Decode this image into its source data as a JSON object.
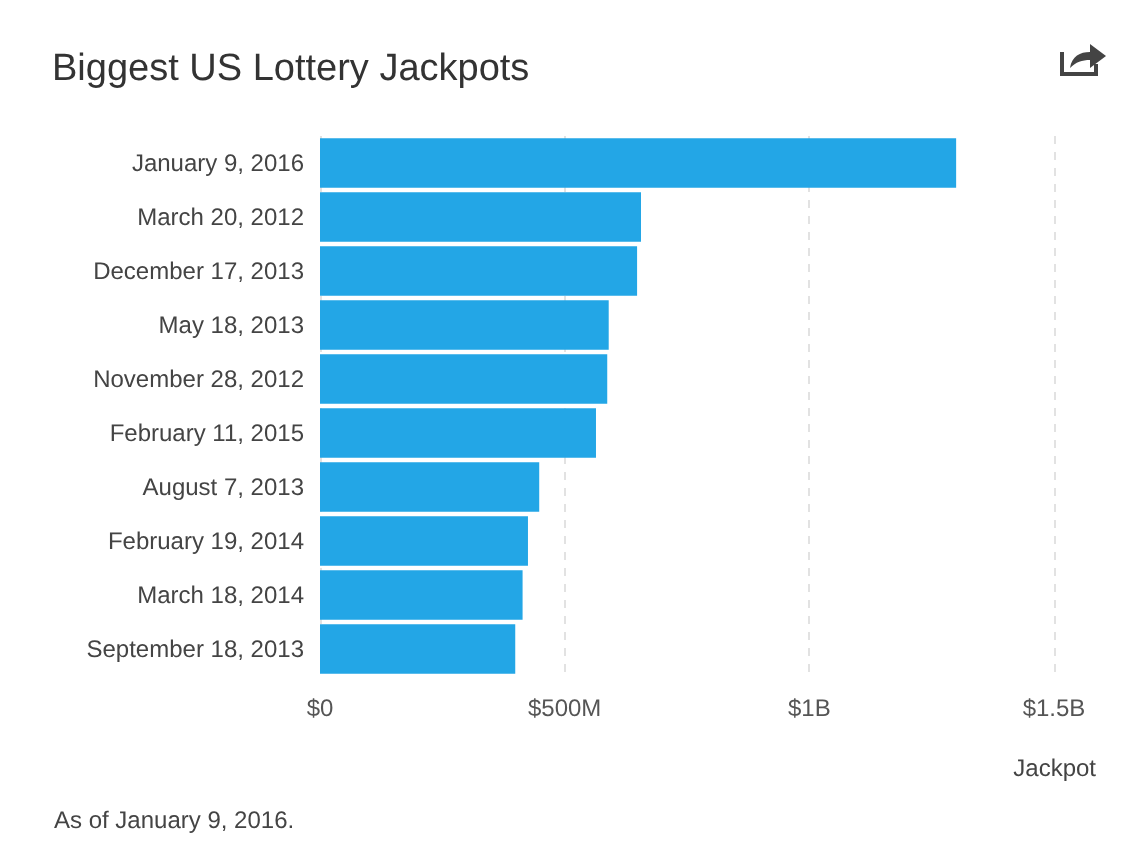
{
  "chart_data": {
    "type": "bar",
    "orientation": "horizontal",
    "title": "Biggest US Lottery Jackpots",
    "xlabel": "Jackpot",
    "categories": [
      "January 9, 2016",
      "March 20, 2012",
      "December 17, 2013",
      "May 18, 2013",
      "November 28, 2012",
      "February 11, 2015",
      "August 7, 2013",
      "February 19, 2014",
      "March 18, 2014",
      "September 18, 2013"
    ],
    "values": [
      1300000000,
      656000000,
      648000000,
      590000000,
      587000000,
      564000000,
      448000000,
      425000000,
      414000000,
      399000000
    ],
    "color": "#23a6e6",
    "xlim": [
      0,
      1500000000
    ],
    "xticks": [
      {
        "value": 0,
        "label": "$0"
      },
      {
        "value": 500000000,
        "label": "$500M"
      },
      {
        "value": 1000000000,
        "label": "$1B"
      },
      {
        "value": 1500000000,
        "label": "$1.5B"
      }
    ],
    "grid": "x",
    "annotations": [
      "As of January 9, 2016."
    ]
  }
}
